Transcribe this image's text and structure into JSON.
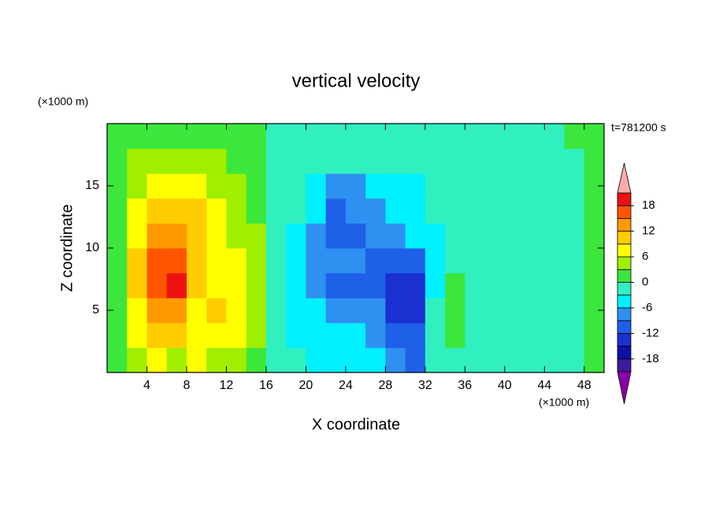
{
  "chart_data": {
    "type": "contour",
    "title": "vertical velocity",
    "xlabel": "X coordinate",
    "ylabel": "Z coordinate",
    "x_unit": "(×1000 m)",
    "y_unit": "(×1000 m)",
    "annotation": "t=781200 s",
    "xlim": [
      0,
      50
    ],
    "ylim": [
      0,
      20
    ],
    "xticks": [
      4,
      8,
      12,
      16,
      20,
      24,
      28,
      32,
      36,
      40,
      44,
      48
    ],
    "yticks": [
      5,
      10,
      15
    ],
    "x": [
      1,
      3,
      5,
      7,
      9,
      11,
      13,
      15,
      17,
      19,
      21,
      23,
      25,
      27,
      29,
      31,
      33,
      35,
      37,
      39,
      41,
      43,
      45,
      47,
      49
    ],
    "y": [
      1,
      3,
      5,
      7,
      9,
      11,
      13,
      15,
      17,
      19
    ],
    "z": [
      [
        1,
        4,
        7,
        5,
        7,
        5,
        4,
        2,
        -1,
        -2,
        -4,
        -4,
        -4,
        -5,
        -8,
        -10,
        -2,
        -1,
        -2,
        -1,
        -2,
        -2,
        -2,
        -1,
        1
      ],
      [
        2,
        6,
        9,
        9,
        8,
        8,
        7,
        4,
        -1,
        -4,
        -5,
        -5,
        -6,
        -8,
        -12,
        -12,
        -3,
        1,
        -2,
        -1,
        -3,
        -2,
        -2,
        -1,
        1
      ],
      [
        2,
        8,
        13,
        12,
        7,
        9,
        7,
        4,
        -1,
        -4,
        -6,
        -8,
        -8,
        -9,
        -13,
        -14,
        -3,
        2,
        -2,
        -1,
        -3,
        -3,
        -2,
        -1,
        1
      ],
      [
        2,
        9,
        16,
        19,
        9,
        7,
        6,
        4,
        -1,
        -4,
        -7,
        -10,
        -10,
        -10,
        -13,
        -13,
        -4,
        1,
        -3,
        -2,
        -3,
        -3,
        -2,
        -1,
        1
      ],
      [
        2,
        9,
        15,
        16,
        10,
        7,
        6,
        4,
        -1,
        -4,
        -7,
        -9,
        -9,
        -10,
        -12,
        -10,
        -4,
        -2,
        -2,
        -2,
        -3,
        -3,
        -2,
        -1,
        1
      ],
      [
        2,
        8,
        13,
        13,
        10,
        7,
        5,
        3,
        -1,
        -4,
        -7,
        -10,
        -10,
        -9,
        -8,
        -6,
        -4,
        -3,
        -2,
        -2,
        -2,
        -2,
        -2,
        -1,
        1
      ],
      [
        2,
        7,
        10,
        11,
        9,
        6,
        4,
        2,
        -1,
        -3,
        -6,
        -10,
        -9,
        -8,
        -6,
        -5,
        -3,
        -2,
        -2,
        -2,
        -2,
        -2,
        -2,
        -1,
        1
      ],
      [
        2,
        5,
        7,
        8,
        7,
        5,
        3,
        2,
        -1,
        -2,
        -5,
        -7,
        -7,
        -6,
        -5,
        -4,
        -3,
        -2,
        -2,
        -2,
        -2,
        -2,
        -2,
        -1,
        1
      ],
      [
        1,
        3,
        5,
        5,
        4,
        3,
        2,
        1,
        -1,
        -2,
        -3,
        -3,
        -3,
        -3,
        -3,
        -2,
        -2,
        -2,
        -2,
        -2,
        -2,
        -2,
        -1,
        -1,
        1
      ],
      [
        1,
        1,
        2,
        2,
        1,
        1,
        1,
        1,
        -1,
        -1,
        -1,
        -1,
        -1,
        -1,
        -1,
        -1,
        -1,
        -1,
        -1,
        -1,
        -1,
        -1,
        -1,
        1,
        1
      ]
    ],
    "levels": [
      -21,
      -18,
      -15,
      -12,
      -9,
      -6,
      -3,
      0,
      3,
      6,
      9,
      12,
      15,
      18,
      21
    ],
    "colors": [
      "#8a00a8",
      "#3c1aa0",
      "#1010a8",
      "#1a30d0",
      "#1e60e8",
      "#2e90f0",
      "#00f0ff",
      "#30f0c0",
      "#3ce63c",
      "#a0ee00",
      "#ffff00",
      "#ffcc00",
      "#ff9900",
      "#ff5500",
      "#ee1111",
      "#ffaaaa"
    ],
    "colorbar_ticks": [
      -18,
      -12,
      -6,
      0,
      6,
      12,
      18
    ]
  }
}
